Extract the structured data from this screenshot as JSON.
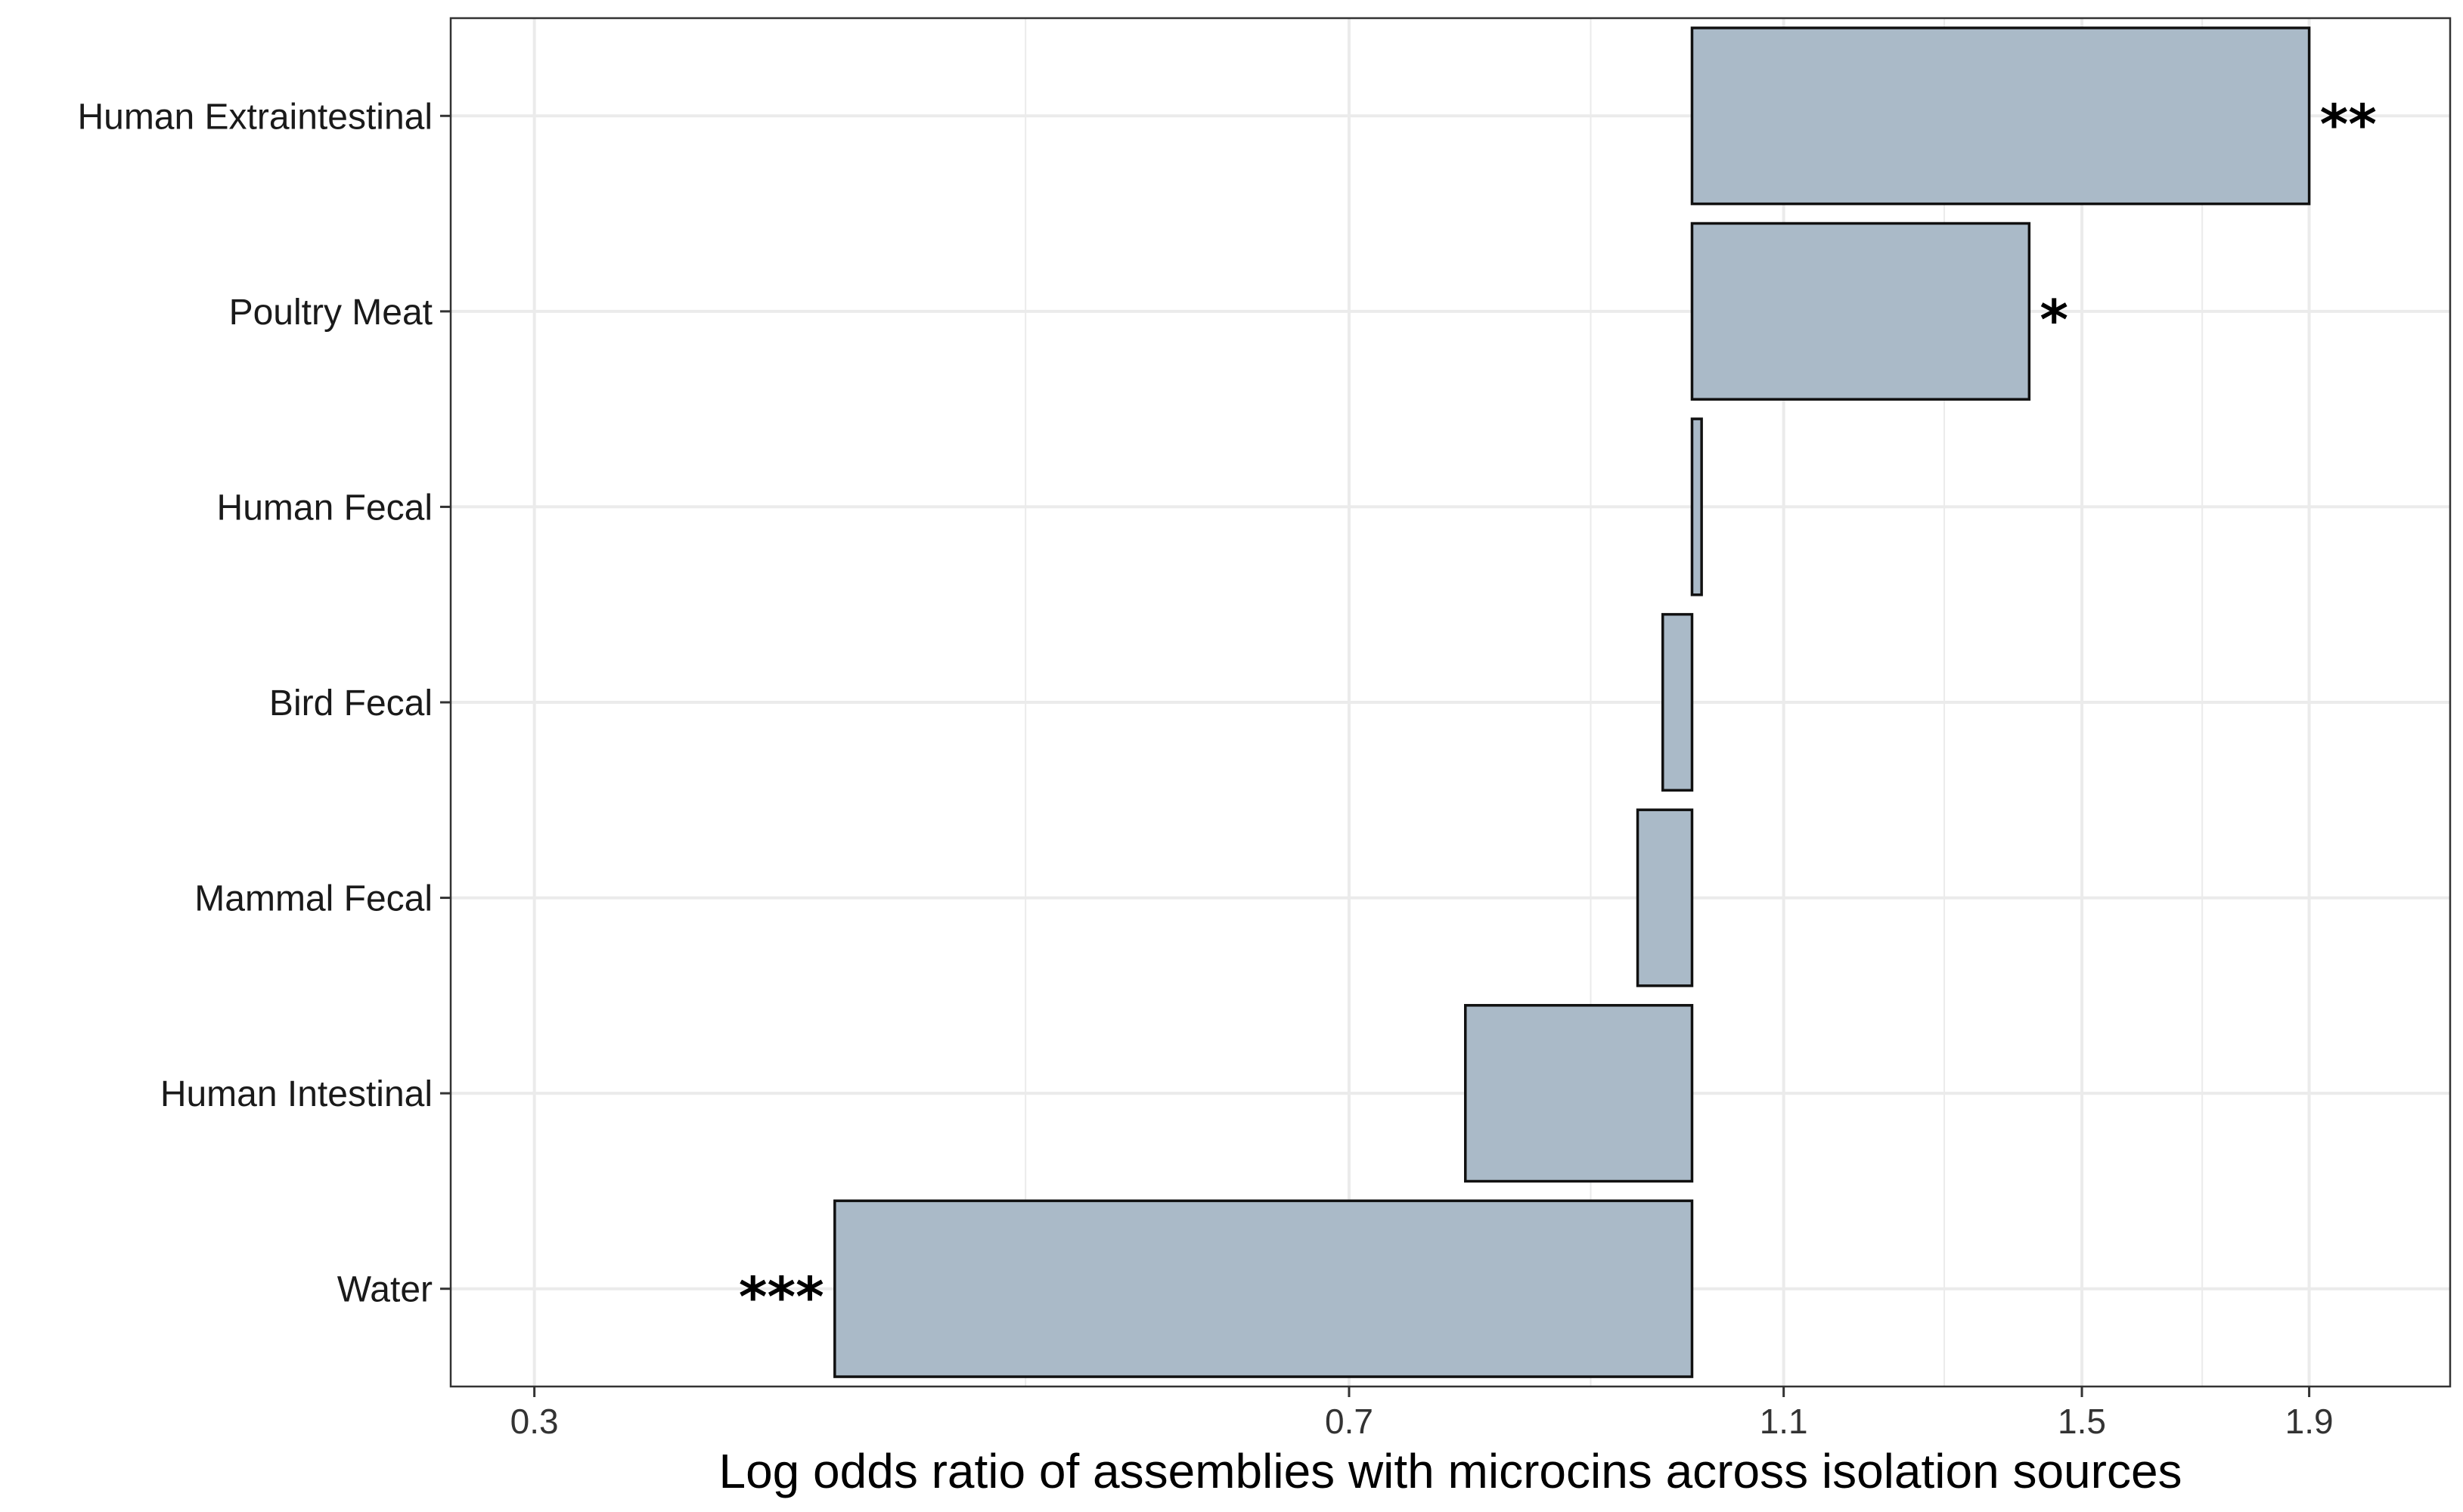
{
  "chart_data": {
    "type": "bar",
    "orientation": "horizontal",
    "title": "",
    "xlabel": "Log odds ratio of assemblies with microcins across isolation sources",
    "ylabel": "",
    "x_scale": "log",
    "baseline": 1.0,
    "xlim": [
      0.275,
      2.2
    ],
    "x_ticks": [
      0.3,
      0.7,
      1.1,
      1.5,
      1.9
    ],
    "x_tick_labels": [
      "0.3",
      "0.7",
      "1.1",
      "1.5",
      "1.9"
    ],
    "x_minor_ticks": [
      0.5,
      0.9,
      1.3,
      1.7
    ],
    "grid": true,
    "legend": "none",
    "categories": [
      "Human Extraintestinal",
      "Poultry Meat",
      "Human Fecal",
      "Bird Fecal",
      "Mammal Fecal",
      "Human Intestinal",
      "Water"
    ],
    "values": [
      1.9,
      1.42,
      1.01,
      0.97,
      0.945,
      0.79,
      0.41
    ],
    "significance": [
      "**",
      "*",
      "",
      "",
      "",
      "",
      "***"
    ],
    "colors": {
      "bar_fill": "#aabac8",
      "bar_stroke": "#111111",
      "grid": "#ebebeb",
      "panel_border": "#333333"
    }
  }
}
